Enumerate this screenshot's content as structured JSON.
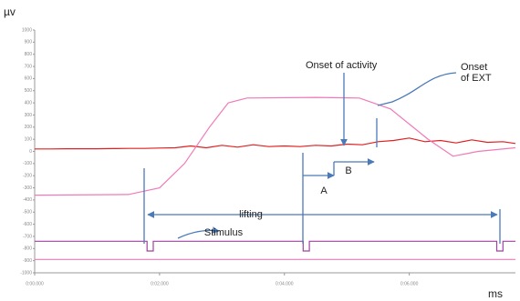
{
  "chart_data": {
    "type": "line",
    "y_label": "µv",
    "x_label": "ms",
    "xlim": [
      0,
      7.7
    ],
    "ylim": [
      -1000,
      1000
    ],
    "yticks": [
      -1000,
      -900,
      -800,
      -700,
      -600,
      -500,
      -400,
      -300,
      -200,
      -100,
      0,
      100,
      200,
      300,
      400,
      500,
      600,
      700,
      800,
      900,
      1000
    ],
    "xticks": [
      {
        "value": 0,
        "label": "0:00.000"
      },
      {
        "value": 2,
        "label": "0:02.000"
      },
      {
        "value": 4,
        "label": "0:04.000"
      },
      {
        "value": 6,
        "label": "0:06.000"
      }
    ],
    "series": [
      {
        "color": "#e02020",
        "x": [
          0,
          0.25,
          0.5,
          0.75,
          1,
          1.25,
          1.5,
          1.75,
          2,
          2.25,
          2.5,
          2.75,
          3,
          3.25,
          3.5,
          3.75,
          4,
          4.25,
          4.5,
          4.75,
          5,
          5.25,
          5.5,
          5.75,
          6,
          6.25,
          6.5,
          6.75,
          7,
          7.25,
          7.5,
          7.7
        ],
        "values": [
          20,
          20,
          22,
          22,
          22,
          23,
          25,
          25,
          28,
          30,
          45,
          30,
          50,
          35,
          55,
          40,
          45,
          40,
          50,
          45,
          60,
          55,
          80,
          90,
          110,
          80,
          90,
          70,
          95,
          75,
          80,
          65
        ]
      },
      {
        "color": "#f07ab8",
        "x": [
          0,
          1.5,
          2.0,
          2.4,
          2.8,
          3.1,
          3.4,
          4.5,
          5.2,
          5.7,
          6.3,
          6.7,
          7.1,
          7.7
        ],
        "values": [
          -360,
          -355,
          -300,
          -100,
          200,
          400,
          440,
          445,
          440,
          350,
          100,
          -40,
          0,
          30
        ]
      },
      {
        "color": "#a040a0",
        "x": [
          0,
          1.8,
          1.8,
          1.9,
          1.9,
          4.3,
          4.3,
          4.4,
          4.4,
          7.4,
          7.4,
          7.5,
          7.5,
          7.7
        ],
        "values": [
          -740,
          -740,
          -820,
          -820,
          -740,
          -740,
          -820,
          -820,
          -740,
          -740,
          -820,
          -820,
          -740,
          -740
        ]
      },
      {
        "color": "#f07ab8",
        "x": [
          0,
          7.7
        ],
        "values": [
          -890,
          -890
        ]
      }
    ],
    "annotations": [
      "Onset of activity",
      "Onset",
      "of EXT",
      "A",
      "B",
      "lifting",
      "Stimulus"
    ]
  }
}
